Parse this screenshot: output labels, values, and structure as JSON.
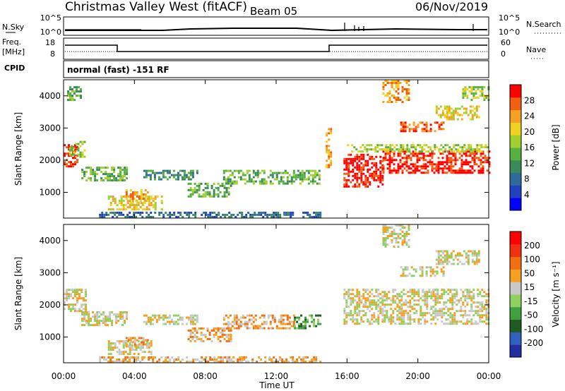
{
  "header": {
    "station": "Christmas Valley West (fitACF)",
    "beam": "Beam 05",
    "date": "06/Nov/2019"
  },
  "side_labels": {
    "nsky": "N.Sky",
    "nsearch": "N.Search",
    "freq": "Freq.",
    "freq_unit": "[MHz]",
    "nave": "Nave",
    "cpid": "CPID"
  },
  "noise_panel": {
    "ytick_lo": "10^0",
    "ytick_hi": "10^5",
    "rtick_lo": "10^0",
    "rtick_hi": "10^5"
  },
  "freq_panel": {
    "ytick_hi": "18",
    "ytick_lo": "8",
    "rtick_hi": "60",
    "rtick_lo": "0"
  },
  "cpid_text": "normal (fast) -151 RF",
  "chart_data": [
    {
      "type": "heatmap",
      "name": "power",
      "ylabel": "Slant Range [km]",
      "xlabel": "Time UT",
      "xticks": [
        "00:00",
        "04:00",
        "08:00",
        "12:00",
        "16:00",
        "20:00",
        "00:00"
      ],
      "yticks": [
        1000,
        2000,
        3000,
        4000
      ],
      "ylim": [
        200,
        4500
      ],
      "colorbar": {
        "label": "Power [dB]",
        "ticks": [
          4,
          8,
          12,
          16,
          20,
          24,
          28
        ],
        "colors": [
          "#0000ff",
          "#2040c0",
          "#2f6a9a",
          "#3b8a5c",
          "#58b040",
          "#9fd030",
          "#f0d020",
          "#f5a020",
          "#f06010",
          "#ff0000"
        ]
      },
      "regions": [
        {
          "t": [
            0.0,
            0.8
          ],
          "r": [
            1800,
            2500
          ],
          "level": 9
        },
        {
          "t": [
            0.3,
            1.2
          ],
          "r": [
            2100,
            2600
          ],
          "level": 5
        },
        {
          "t": [
            0.2,
            1.0
          ],
          "r": [
            3900,
            4300
          ],
          "level": 4
        },
        {
          "t": [
            1.0,
            3.6
          ],
          "r": [
            1400,
            1800
          ],
          "level": 4
        },
        {
          "t": [
            2.5,
            5.5
          ],
          "r": [
            500,
            900
          ],
          "level": 6
        },
        {
          "t": [
            3.5,
            4.8
          ],
          "r": [
            700,
            1100
          ],
          "level": 7
        },
        {
          "t": [
            4.5,
            7.5
          ],
          "r": [
            1400,
            1700
          ],
          "level": 3
        },
        {
          "t": [
            7.0,
            9.5
          ],
          "r": [
            900,
            1300
          ],
          "level": 4
        },
        {
          "t": [
            9.0,
            14.5
          ],
          "r": [
            1300,
            1700
          ],
          "level": 4
        },
        {
          "t": [
            2.0,
            14.5
          ],
          "r": [
            250,
            400
          ],
          "level": 2
        },
        {
          "t": [
            14.8,
            15.1
          ],
          "r": [
            1800,
            3000
          ],
          "level": 7
        },
        {
          "t": [
            15.8,
            18.0
          ],
          "r": [
            1200,
            2200
          ],
          "level": 9
        },
        {
          "t": [
            18.0,
            24.0
          ],
          "r": [
            1600,
            2300
          ],
          "level": 9
        },
        {
          "t": [
            16.0,
            24.0
          ],
          "r": [
            2300,
            2500
          ],
          "level": 5
        },
        {
          "t": [
            19.0,
            21.5
          ],
          "r": [
            2900,
            3200
          ],
          "level": 8
        },
        {
          "t": [
            21.0,
            23.5
          ],
          "r": [
            3300,
            3700
          ],
          "level": 6
        },
        {
          "t": [
            18.0,
            19.5
          ],
          "r": [
            3800,
            4500
          ],
          "level": 7
        },
        {
          "t": [
            22.5,
            24.0
          ],
          "r": [
            3900,
            4300
          ],
          "level": 5
        }
      ]
    },
    {
      "type": "heatmap",
      "name": "velocity",
      "ylabel": "Slant Range [km]",
      "xlabel": "Time UT",
      "xticks": [
        "00:00",
        "04:00",
        "08:00",
        "12:00",
        "16:00",
        "20:00",
        "00:00"
      ],
      "yticks": [
        1000,
        2000,
        3000,
        4000
      ],
      "ylim": [
        200,
        4500
      ],
      "colorbar": {
        "label": "Velocity [m s⁻¹]",
        "ticks": [
          200,
          100,
          50,
          15,
          -15,
          -50,
          -100,
          -200
        ],
        "colors": [
          "#2030a0",
          "#3060c0",
          "#205a20",
          "#40a040",
          "#90d060",
          "#c8c8c8",
          "#f5a020",
          "#f07010",
          "#f03010",
          "#ff0000"
        ]
      },
      "regions": [
        {
          "t": [
            0.0,
            1.2
          ],
          "r": [
            1800,
            2500
          ],
          "level": 5
        },
        {
          "t": [
            1.0,
            3.6
          ],
          "r": [
            1400,
            1800
          ],
          "level": 5
        },
        {
          "t": [
            2.5,
            5.0
          ],
          "r": [
            500,
            900
          ],
          "level": 5
        },
        {
          "t": [
            3.5,
            4.8
          ],
          "r": [
            700,
            1000
          ],
          "level": 6
        },
        {
          "t": [
            4.5,
            7.5
          ],
          "r": [
            1400,
            1700
          ],
          "level": 5
        },
        {
          "t": [
            7.0,
            9.5
          ],
          "r": [
            900,
            1300
          ],
          "level": 6
        },
        {
          "t": [
            9.0,
            13.0
          ],
          "r": [
            1300,
            1700
          ],
          "level": 6
        },
        {
          "t": [
            13.0,
            14.5
          ],
          "r": [
            1300,
            1700
          ],
          "level": 3
        },
        {
          "t": [
            2.0,
            14.5
          ],
          "r": [
            250,
            400
          ],
          "level": 6
        },
        {
          "t": [
            15.8,
            24.0
          ],
          "r": [
            1400,
            2500
          ],
          "level": 5
        },
        {
          "t": [
            19.0,
            21.5
          ],
          "r": [
            2900,
            3200
          ],
          "level": 5
        },
        {
          "t": [
            21.0,
            23.5
          ],
          "r": [
            3300,
            3700
          ],
          "level": 5
        },
        {
          "t": [
            18.0,
            19.5
          ],
          "r": [
            3800,
            4500
          ],
          "level": 5
        }
      ]
    }
  ]
}
